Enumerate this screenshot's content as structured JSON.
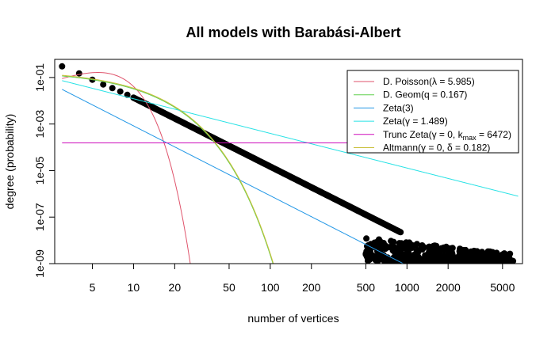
{
  "chart_data": {
    "type": "scatter",
    "title": "All models with Barabási-Albert",
    "xlabel": "number of vertices",
    "ylabel": "degree (probability)",
    "x_scale": "log",
    "y_scale": "log",
    "xlim": [
      2.65,
      7000
    ],
    "ylim": [
      1e-09,
      0.6
    ],
    "x_ticks": [
      5,
      10,
      20,
      50,
      100,
      200,
      500,
      1000,
      2000,
      5000
    ],
    "x_tick_labels": [
      "5",
      "10",
      "20",
      "50",
      "100",
      "200",
      "500",
      "1000",
      "2000",
      "5000"
    ],
    "y_ticks": [
      1e-09,
      1e-07,
      1e-05,
      0.001,
      0.1
    ],
    "y_tick_labels": [
      "1e-09",
      "1e-07",
      "1e-05",
      "1e-03",
      "1e-01"
    ],
    "grid": false,
    "legend_position": "top-right",
    "points": {
      "head": [
        [
          3,
          0.3
        ],
        [
          4,
          0.15
        ],
        [
          5,
          0.08
        ],
        [
          6,
          0.05
        ],
        [
          7,
          0.035
        ],
        [
          8,
          0.025
        ],
        [
          9,
          0.018
        ],
        [
          10,
          0.0135
        ]
      ],
      "power_law": {
        "x_start": 10,
        "y_start": 0.0135,
        "x_end": 900,
        "y_end": 2.5e-08,
        "exponent": -2.96
      },
      "tail_y_range": [
        1.3e-09,
        1.3e-08
      ],
      "tail_x_range": [
        500,
        6000
      ]
    },
    "series": [
      {
        "name": "D. Poisson(λ = 5.985)",
        "color": "#DF536B",
        "kind": "poisson",
        "lambda": 5.985
      },
      {
        "name": "D. Geom(q = 0.167)",
        "color": "#61D04F",
        "kind": "geom",
        "q": 0.167
      },
      {
        "name": "Zeta(3)",
        "color": "#2297E6",
        "kind": "zeta",
        "s": 3
      },
      {
        "name": "Zeta(γ = 1.489)",
        "color": "#28E2E5",
        "kind": "zeta",
        "s": 1.489
      },
      {
        "name_parts": [
          "Trunc Zeta(γ = 0, k",
          "max",
          " = 6472)"
        ],
        "color": "#CD0BBC",
        "kind": "trunc_zeta",
        "value": 0.000154
      },
      {
        "name": "Altmann(γ = 0, δ = 0.182)",
        "color": "#C9BF3A",
        "kind": "altmann",
        "delta": 0.182
      }
    ]
  }
}
